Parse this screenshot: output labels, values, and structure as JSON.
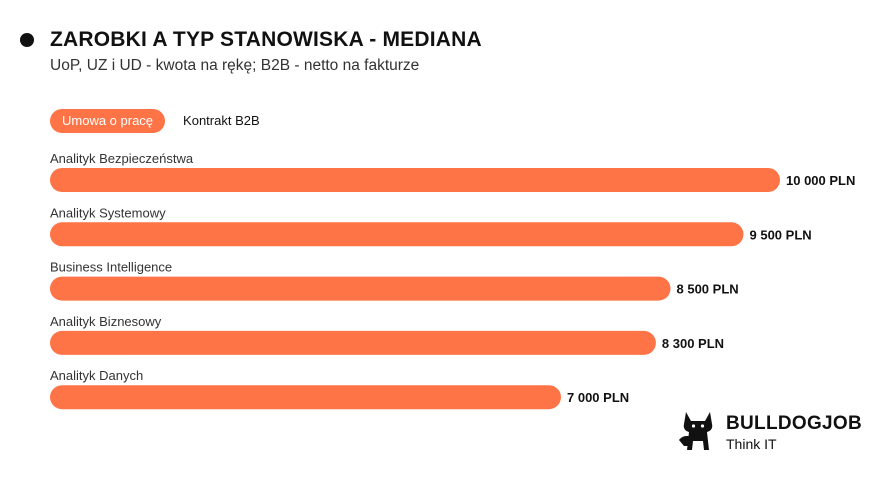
{
  "header": {
    "title": "ZAROBKI A TYP STANOWISKA - MEDIANA",
    "subtitle": "UoP, UZ i UD - kwota na rękę; B2B - netto na fakturze"
  },
  "tabs": [
    {
      "label": "Umowa o pracę",
      "active": true
    },
    {
      "label": "Kontrakt B2B",
      "active": false
    }
  ],
  "colors": {
    "accent": "#ff7447",
    "label": "#333333",
    "value": "#111111"
  },
  "chart_data": {
    "type": "bar",
    "orientation": "horizontal",
    "categories": [
      "Analityk Bezpieczeństwa",
      "Analityk Systemowy",
      "Business Intelligence",
      "Analityk Biznesowy",
      "Analityk Danych"
    ],
    "values": [
      10000,
      9500,
      8500,
      8300,
      7000
    ],
    "value_labels": [
      "10 000 PLN",
      "9 500 PLN",
      "8 500 PLN",
      "8 300 PLN",
      "7 000 PLN"
    ],
    "xlim": [
      0,
      10000
    ],
    "grid": false,
    "legend": "none"
  },
  "logo": {
    "brand": "BULLDOGJOB",
    "tagline": "Think IT",
    "icon": "bulldog-icon"
  }
}
